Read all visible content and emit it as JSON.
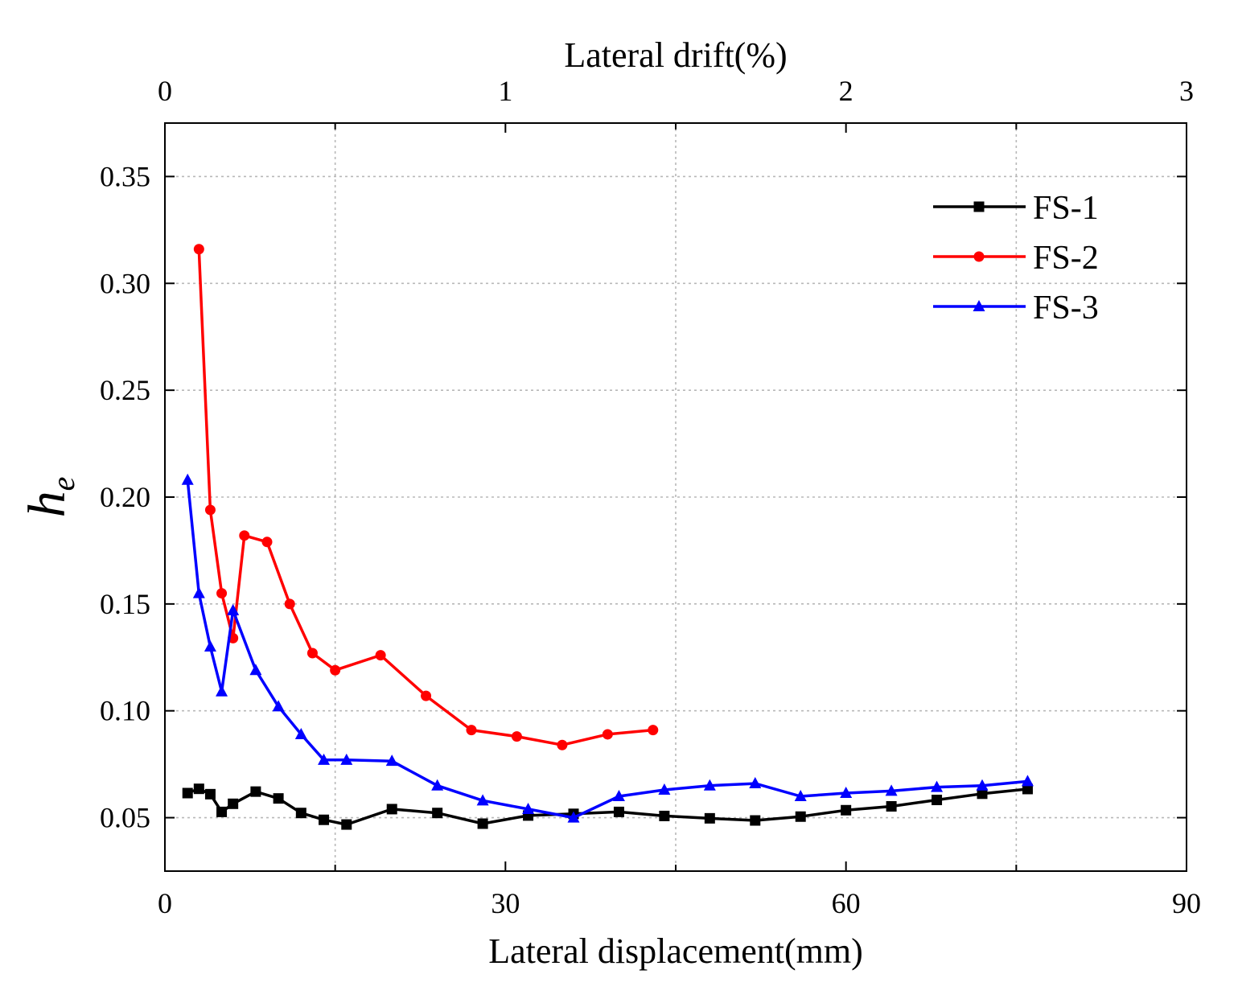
{
  "chart_data": {
    "type": "line",
    "xlabel": "Lateral displacement(mm)",
    "x2label": "Lateral drift(%)",
    "ylabel_main": "h",
    "ylabel_sub": "e",
    "xlim": [
      0,
      90
    ],
    "x2lim": [
      0,
      3
    ],
    "ylim": [
      0.025,
      0.375
    ],
    "xticks": [
      0,
      30,
      60,
      90
    ],
    "xtick_labels": [
      "0",
      "30",
      "60",
      "90"
    ],
    "x2ticks": [
      0,
      1,
      2,
      3
    ],
    "x2tick_labels": [
      "0",
      "1",
      "2",
      "3"
    ],
    "yticks": [
      0.05,
      0.1,
      0.15,
      0.2,
      0.25,
      0.3,
      0.35
    ],
    "ytick_labels": [
      "0.05",
      "0.10",
      "0.15",
      "0.20",
      "0.25",
      "0.30",
      "0.35"
    ],
    "grid": true,
    "legend_position": "top-right",
    "series": [
      {
        "name": "FS-1",
        "color": "#000000",
        "marker": "square",
        "x": [
          2,
          3,
          4,
          5,
          6,
          8,
          10,
          12,
          14,
          16,
          20,
          24,
          28,
          32,
          36,
          40,
          44,
          48,
          52,
          56,
          60,
          64,
          68,
          72,
          76
        ],
        "y": [
          0.0615,
          0.0635,
          0.061,
          0.0527,
          0.0565,
          0.0622,
          0.059,
          0.0522,
          0.049,
          0.0468,
          0.054,
          0.0522,
          0.0472,
          0.051,
          0.0518,
          0.0527,
          0.0508,
          0.0497,
          0.0487,
          0.0505,
          0.0535,
          0.0553,
          0.0583,
          0.0612,
          0.0634
        ]
      },
      {
        "name": "FS-2",
        "color": "#ff0000",
        "marker": "circle",
        "x": [
          3,
          4,
          5,
          6,
          7,
          9,
          11,
          13,
          15,
          19,
          23,
          27,
          31,
          35,
          39,
          43
        ],
        "y": [
          0.316,
          0.194,
          0.155,
          0.134,
          0.182,
          0.179,
          0.15,
          0.127,
          0.119,
          0.126,
          0.107,
          0.091,
          0.088,
          0.084,
          0.089,
          0.091
        ]
      },
      {
        "name": "FS-3",
        "color": "#0000ff",
        "marker": "triangle",
        "x": [
          2,
          3,
          4,
          5,
          6,
          8,
          10,
          12,
          14,
          16,
          20,
          24,
          28,
          32,
          36,
          40,
          44,
          48,
          52,
          56,
          60,
          64,
          68,
          72,
          76
        ],
        "y": [
          0.208,
          0.155,
          0.13,
          0.109,
          0.147,
          0.119,
          0.102,
          0.089,
          0.077,
          0.077,
          0.0765,
          0.065,
          0.058,
          0.054,
          0.05,
          0.06,
          0.063,
          0.065,
          0.066,
          0.06,
          0.0615,
          0.0625,
          0.0643,
          0.065,
          0.067
        ]
      }
    ]
  }
}
